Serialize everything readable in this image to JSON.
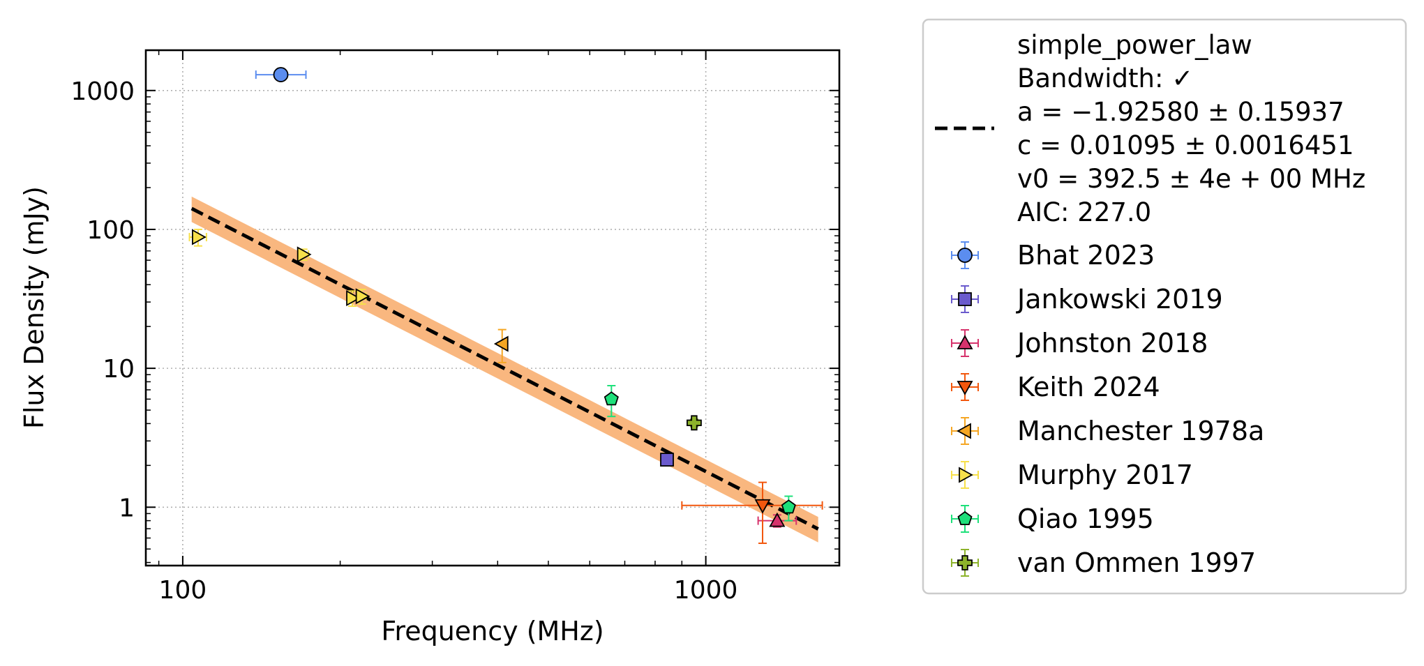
{
  "chart_data": {
    "type": "scatter",
    "xlabel": "Frequency (MHz)",
    "ylabel": "Flux Density (mJy)",
    "xscale": "log",
    "yscale": "log",
    "xlim": [
      85,
      1800
    ],
    "ylim": [
      0.38,
      1950
    ],
    "grid": true,
    "legend_position": "outside-right",
    "x_ticks": [
      {
        "value": 100,
        "label": "100"
      },
      {
        "value": 1000,
        "label": "1000"
      }
    ],
    "y_ticks": [
      {
        "value": 1,
        "label": "1"
      },
      {
        "value": 10,
        "label": "10"
      },
      {
        "value": 100,
        "label": "100"
      },
      {
        "value": 1000,
        "label": "1000"
      }
    ],
    "fit": {
      "name": "simple_power_law",
      "label_lines": [
        "simple_power_law",
        "Bandwidth: ✓",
        "a = −1.92580 ± 0.15937",
        "c = 0.01095 ± 0.0016451",
        "v0 = 392.5 ± 4e + 00 MHz",
        "AIC: 227.0"
      ],
      "a": -1.9258,
      "c": 0.01095,
      "v0": 392.5,
      "band_factor_low": 0.8,
      "band_factor_high": 1.22,
      "x_range": [
        104,
        1640
      ],
      "line_color": "#000000",
      "band_color": "#f9b77f"
    },
    "series": [
      {
        "name": "Bhat 2023",
        "marker": "circle",
        "color": "#5b8def",
        "edge": "#000000",
        "points": [
          {
            "x": 154,
            "y": 1300,
            "xerr": [
              16,
              18
            ],
            "yerr": [
              0,
              0
            ]
          }
        ]
      },
      {
        "name": "Jankowski 2019",
        "marker": "square",
        "color": "#6a5acd",
        "edge": "#000000",
        "points": [
          {
            "x": 843,
            "y": 2.2,
            "xerr": [
              0,
              0
            ],
            "yerr": [
              0.2,
              0.2
            ]
          }
        ]
      },
      {
        "name": "Johnston 2018",
        "marker": "triangle-up",
        "color": "#d6336c",
        "edge": "#000000",
        "points": [
          {
            "x": 1369,
            "y": 0.8,
            "xerr": [
              110,
              120
            ],
            "yerr": [
              0.08,
              0.08
            ]
          }
        ]
      },
      {
        "name": "Keith 2024",
        "marker": "triangle-down",
        "color": "#f2570d",
        "edge": "#000000",
        "points": [
          {
            "x": 1284,
            "y": 1.03,
            "xerr": [
              384,
              386
            ],
            "yerr": [
              0.48,
              0.48
            ]
          }
        ]
      },
      {
        "name": "Manchester 1978a",
        "marker": "triangle-left",
        "color": "#f5a623",
        "edge": "#000000",
        "points": [
          {
            "x": 408,
            "y": 15,
            "xerr": [
              0,
              0
            ],
            "yerr": [
              4,
              4
            ]
          }
        ]
      },
      {
        "name": "Murphy 2017",
        "marker": "triangle-right",
        "color": "#f7e04b",
        "edge": "#000000",
        "points": [
          {
            "x": 107,
            "y": 88,
            "xerr": [
              4,
              4
            ],
            "yerr": [
              12,
              12
            ]
          },
          {
            "x": 170,
            "y": 66,
            "xerr": [
              4,
              4
            ],
            "yerr": [
              6,
              6
            ]
          },
          {
            "x": 211,
            "y": 32,
            "xerr": [
              4,
              4
            ],
            "yerr": [
              4,
              4
            ]
          },
          {
            "x": 220,
            "y": 33,
            "xerr": [
              4,
              4
            ],
            "yerr": [
              4,
              4
            ]
          }
        ]
      },
      {
        "name": "Qiao 1995",
        "marker": "pentagon",
        "color": "#1de07a",
        "edge": "#000000",
        "points": [
          {
            "x": 660,
            "y": 6,
            "xerr": [
              0,
              0
            ],
            "yerr": [
              1.5,
              1.5
            ]
          },
          {
            "x": 1440,
            "y": 1.0,
            "xerr": [
              30,
              30
            ],
            "yerr": [
              0.2,
              0.2
            ]
          }
        ]
      },
      {
        "name": "van Ommen 1997",
        "marker": "plus",
        "color": "#8db32b",
        "edge": "#000000",
        "points": [
          {
            "x": 950,
            "y": 4.05,
            "xerr": [
              0,
              0
            ],
            "yerr": [
              0.25,
              0.25
            ]
          }
        ]
      }
    ]
  }
}
